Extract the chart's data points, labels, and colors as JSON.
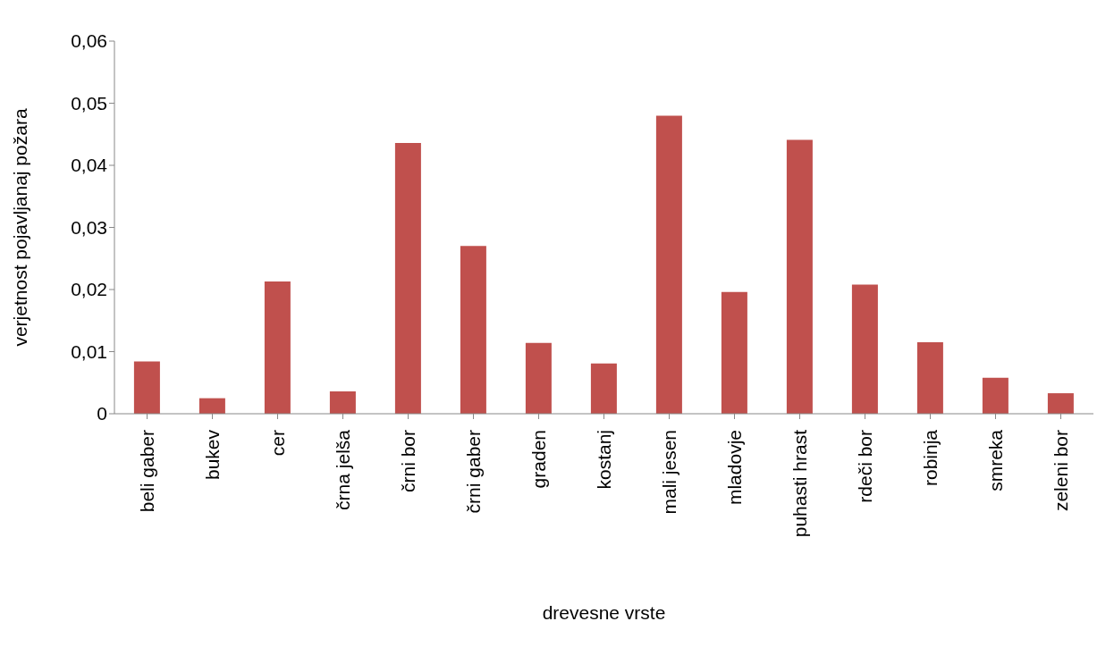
{
  "chart_data": {
    "type": "bar",
    "xlabel": "drevesne vrste",
    "ylabel": "verjetnost pojavljanaj požara",
    "categories": [
      "beli gaber",
      "bukev",
      "cer",
      "črna jelša",
      "črni bor",
      "črni gaber",
      "graden",
      "kostanj",
      "mali jesen",
      "mladovje",
      "puhasti hrast",
      "rdeči bor",
      "robinja",
      "smreka",
      "zeleni bor"
    ],
    "values": [
      0.0084,
      0.0025,
      0.0213,
      0.0036,
      0.0436,
      0.027,
      0.0114,
      0.0081,
      0.048,
      0.0196,
      0.0441,
      0.0208,
      0.0115,
      0.0058,
      0.0033
    ],
    "color": "#c0504d",
    "ylim": [
      0,
      0.06
    ],
    "yticks": [
      0,
      {
        "value": 0.01,
        "label": "0,01"
      },
      {
        "value": 0.02,
        "label": "0,02"
      },
      {
        "value": 0.03,
        "label": "0,03"
      },
      {
        "value": 0.04,
        "label": "0,04"
      },
      {
        "value": 0.05,
        "label": "0,05"
      },
      {
        "value": 0.06,
        "label": "0,06"
      }
    ],
    "grid": false
  }
}
